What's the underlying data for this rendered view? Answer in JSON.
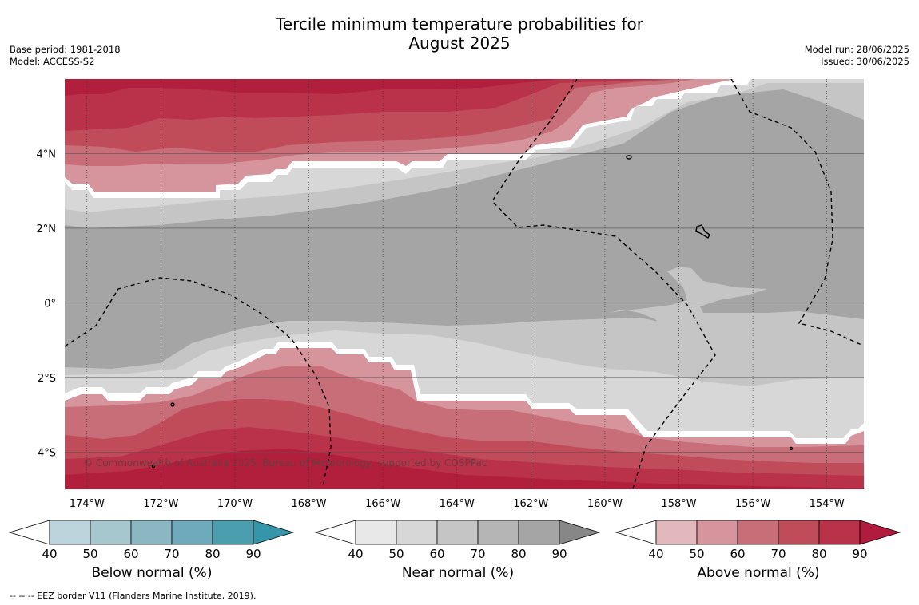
{
  "title": {
    "line1": "Tercile minimum temperature probabilities for",
    "line2": "August 2025"
  },
  "meta": {
    "base_period": "Base period: 1981-2018",
    "model": "Model: ACCESS-S2",
    "model_run": "Model run: 28/06/2025",
    "issued": "Issued: 30/06/2025"
  },
  "map": {
    "lon_range": [
      -174.6,
      -153.0
    ],
    "lat_range": [
      -5.0,
      6.0
    ],
    "lon_ticks": [
      -174,
      -172,
      -170,
      -168,
      -166,
      -164,
      -162,
      -160,
      -158,
      -156,
      -154
    ],
    "lon_tick_labels": [
      "174°W",
      "172°W",
      "170°W",
      "168°W",
      "166°W",
      "164°W",
      "162°W",
      "160°W",
      "158°W",
      "156°W",
      "154°W"
    ],
    "lat_ticks": [
      4,
      2,
      0,
      -2,
      -4
    ],
    "lat_tick_labels": [
      "4°N",
      "2°N",
      "0°",
      "2°S",
      "4°S"
    ],
    "copyright": "© Commonwealth of Australia 2025, Bureau of Meteorology, supported by COSPPac",
    "colors": {
      "near_90": "#a5a5a5",
      "near_80": "#c5c5c5",
      "near_70": "#d7d7d7",
      "above_40": "#ffffff",
      "above_50": "#d6949c",
      "above_60": "#c86e79",
      "above_70": "#c04c5a",
      "above_80": "#b93249",
      "above_90": "#b21f3c"
    }
  },
  "colorbars": [
    {
      "label": "Below normal (%)",
      "ticks": [
        "40",
        "50",
        "60",
        "70",
        "80",
        "90"
      ],
      "colors": [
        "#bcd5dc",
        "#a5c7cd",
        "#8ab7c2",
        "#6eaabb",
        "#4a9eae",
        "#3595a9"
      ]
    },
    {
      "label": "Near normal (%)",
      "ticks": [
        "40",
        "50",
        "60",
        "70",
        "80",
        "90"
      ],
      "colors": [
        "#e8e8e8",
        "#d7d7d7",
        "#c5c5c5",
        "#b5b5b5",
        "#a5a5a5",
        "#878787"
      ]
    },
    {
      "label": "Above normal (%)",
      "ticks": [
        "40",
        "50",
        "60",
        "70",
        "80",
        "90"
      ],
      "colors": [
        "#e2b8bd",
        "#d6949c",
        "#c86e79",
        "#c04c5a",
        "#b93249",
        "#b01b3e"
      ]
    }
  ],
  "footer": "--  --  -- EEZ border V11 (Flanders Marine Institute, 2019)."
}
